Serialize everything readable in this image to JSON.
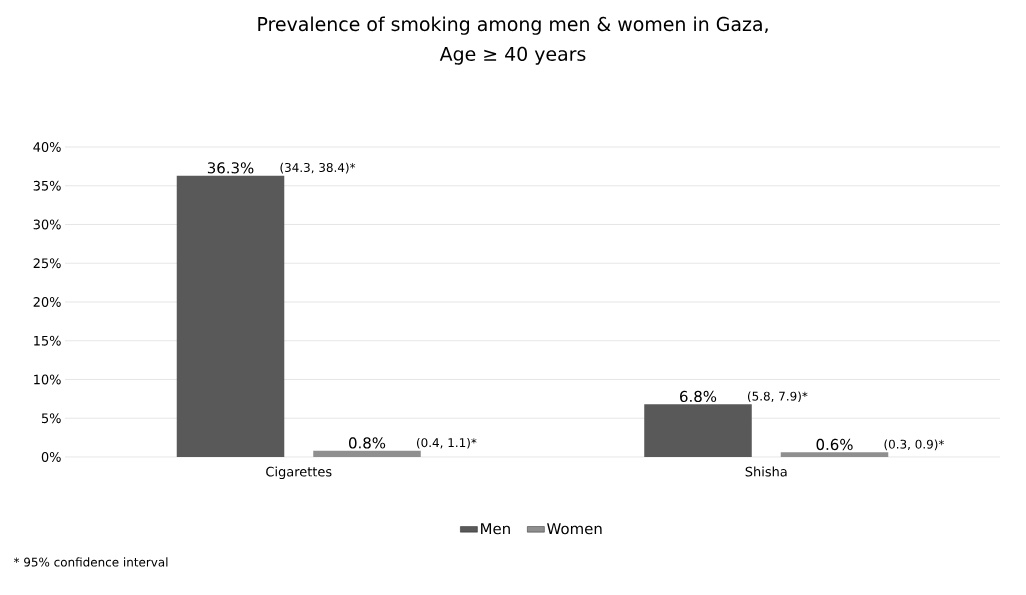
{
  "chart_data": {
    "type": "bar",
    "title": "Prevalence of smoking among men & women in Gaza,\nAge ≥ 40 years",
    "categories": [
      "Cigarettes",
      "Shisha"
    ],
    "series": [
      {
        "name": "Men",
        "color": "#595959",
        "values": [
          36.3,
          6.8
        ],
        "value_labels": [
          "36.3%",
          "6.8%"
        ]
      },
      {
        "name": "Women",
        "color": "#8f8f8f",
        "values": [
          0.8,
          0.6
        ],
        "value_labels": [
          "0.8%",
          "0.6%"
        ]
      }
    ],
    "ylim": [
      0,
      40
    ],
    "yticks": [
      {
        "value": 0,
        "label": "0%"
      },
      {
        "value": 5,
        "label": "5%"
      },
      {
        "value": 10,
        "label": "10%"
      },
      {
        "value": 15,
        "label": "15%"
      },
      {
        "value": 20,
        "label": "20%"
      },
      {
        "value": 25,
        "label": "25%"
      },
      {
        "value": 30,
        "label": "30%"
      },
      {
        "value": 35,
        "label": "35%"
      },
      {
        "value": 40,
        "label": "40%"
      }
    ],
    "grid": "y",
    "legend": "bottom",
    "annotations": [
      "(34.3, 38.4)*",
      "(0.4, 1.1)*",
      "(5.8, 7.9)*",
      "(0.3, 0.9)*",
      "* 95% confidence interval"
    ]
  }
}
